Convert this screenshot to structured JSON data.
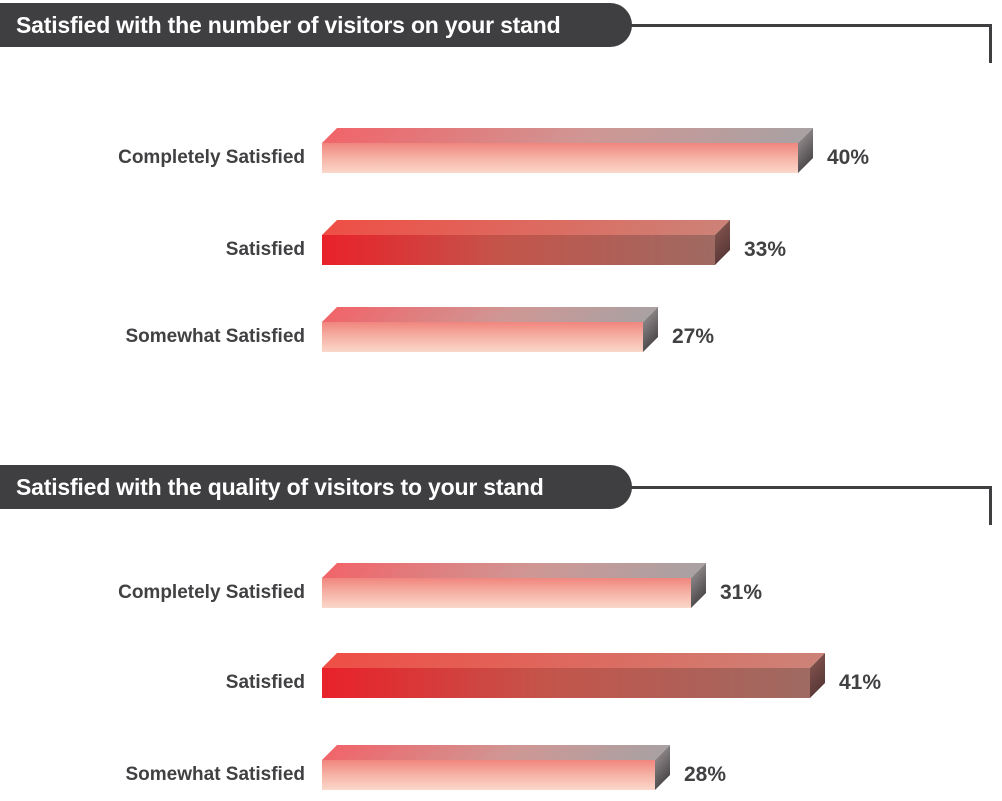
{
  "chart_data": [
    {
      "type": "bar",
      "orientation": "horizontal",
      "title": "Satisfied with the number of visitors on your stand",
      "categories": [
        "Completely Satisfied",
        "Satisfied",
        "Somewhat Satisfied"
      ],
      "values": [
        40,
        33,
        27
      ],
      "data_labels": [
        "40%",
        "33%",
        "27%"
      ],
      "unit": "percent",
      "xlim": [
        0,
        50
      ],
      "grid": false,
      "legend": false
    },
    {
      "type": "bar",
      "orientation": "horizontal",
      "title": "Satisfied with the quality of visitors to your stand",
      "categories": [
        "Completely Satisfied",
        "Satisfied",
        "Somewhat Satisfied"
      ],
      "values": [
        31,
        41,
        28
      ],
      "data_labels": [
        "31%",
        "41%",
        "28%"
      ],
      "unit": "percent",
      "xlim": [
        0,
        50
      ],
      "grid": false,
      "legend": false
    }
  ],
  "styles": {
    "banner_background": "#3f3e40",
    "banner_text_color": "#ffffff",
    "connector_color": "#3f3e40",
    "category_label_color": "#414042",
    "value_label_color": "#414042",
    "row_styles": [
      "salmon",
      "red",
      "salmon"
    ],
    "bar_palette": {
      "salmon": {
        "top_dir": "90deg",
        "top": [
          "#f0656a 0%",
          "#cf9794 55%",
          "#a9a1a3 100%"
        ],
        "front_dir": "180deg",
        "front": [
          "#f0867e 0%",
          "#f6b3a6 50%",
          "#fbd8cb 100%"
        ],
        "side_dir": "170deg",
        "side": [
          "#8a8485 0%",
          "#4e4a4c 100%"
        ]
      },
      "red": {
        "top_dir": "90deg",
        "top": [
          "#ee4f46 0%",
          "#cd8277 100%"
        ],
        "front_dir": "90deg",
        "front": [
          "#e9212a 0%",
          "#c4544a 45%",
          "#9e6a62 100%"
        ],
        "side_dir": "170deg",
        "side": [
          "#7d4f4b 0%",
          "#5a3938 100%"
        ]
      }
    }
  }
}
